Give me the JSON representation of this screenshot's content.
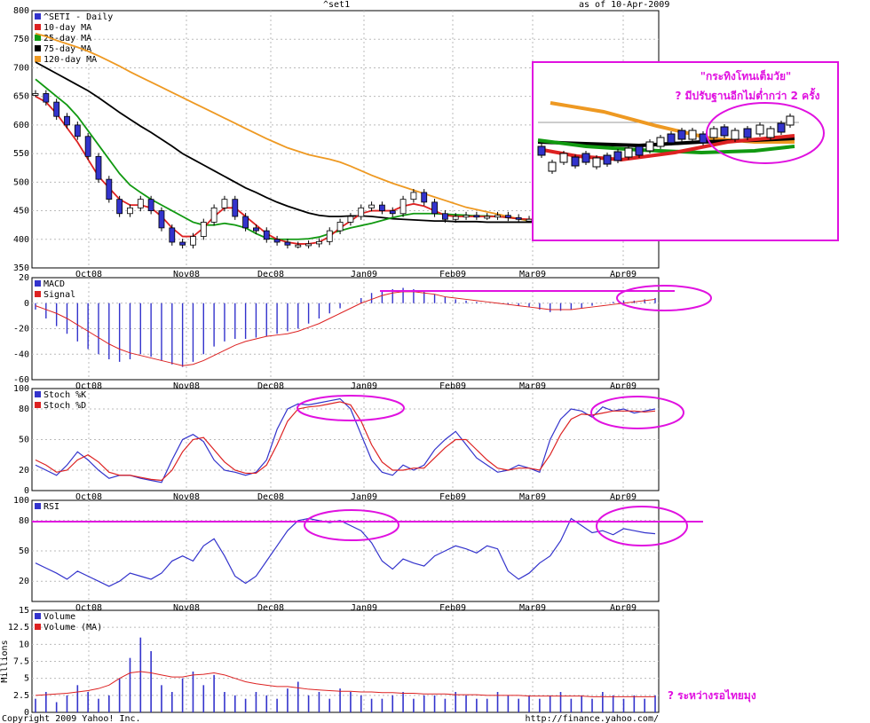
{
  "header": {
    "symbol": "^set1",
    "as_of": "as of 10-Apr-2009"
  },
  "footer": {
    "copyright": "Copyright 2009 Yahoo! Inc.",
    "source": "http://finance.yahoo.com/"
  },
  "annotations": {
    "inset_title": "\"กระทิงโทนเต็มวัย\"",
    "inset_note": "? มีปรับฐานอีกไม่ต่ำกว่า 2 ครั้ง",
    "volume_note": "? ระหว่างรอไทยมุง"
  },
  "colors": {
    "price": "#3333cc",
    "ma10": "#dd2222",
    "ma25": "#119911",
    "ma75": "#000000",
    "ma120": "#ee9922",
    "highlight": "#e011e0",
    "grid": "#bbbbbb"
  },
  "chart_data": [
    {
      "type": "line",
      "panel": "price",
      "legend": [
        "^SETI - Daily",
        "10-day MA",
        "25-day MA",
        "75-day MA",
        "120-day MA"
      ],
      "x_ticks": [
        "Oct08",
        "Nov08",
        "Dec08",
        "Jan09",
        "Feb09",
        "Mar09",
        "Apr09"
      ],
      "ylim": [
        350,
        800
      ],
      "y_ticks": [
        350,
        400,
        450,
        500,
        550,
        600,
        650,
        700,
        750,
        800
      ],
      "series": [
        {
          "name": "^SETI - Daily",
          "values": [
            655,
            640,
            615,
            600,
            580,
            545,
            505,
            470,
            445,
            455,
            470,
            450,
            420,
            395,
            390,
            405,
            430,
            455,
            470,
            440,
            420,
            415,
            400,
            395,
            390,
            390,
            392,
            396,
            415,
            430,
            440,
            455,
            460,
            450,
            445,
            470,
            482,
            465,
            445,
            435,
            440,
            442,
            440,
            440,
            442,
            438,
            435,
            435,
            436,
            430,
            430,
            422,
            418,
            420,
            425,
            430,
            434,
            438,
            440,
            450
          ]
        },
        {
          "name": "10-day MA",
          "values": [
            650,
            640,
            620,
            595,
            570,
            540,
            510,
            490,
            470,
            460,
            460,
            455,
            440,
            420,
            405,
            405,
            420,
            440,
            455,
            455,
            440,
            425,
            410,
            400,
            395,
            392,
            392,
            395,
            405,
            420,
            432,
            445,
            450,
            450,
            450,
            458,
            462,
            458,
            450,
            442,
            440,
            440,
            440,
            440,
            440,
            438,
            436,
            435,
            434,
            431,
            428,
            425,
            422,
            420,
            420,
            425,
            430,
            433,
            437,
            445
          ]
        },
        {
          "name": "25-day MA",
          "values": [
            680,
            665,
            650,
            635,
            615,
            590,
            565,
            540,
            515,
            495,
            482,
            470,
            460,
            450,
            440,
            430,
            425,
            425,
            428,
            425,
            420,
            410,
            402,
            400,
            400,
            400,
            401,
            404,
            410,
            415,
            420,
            424,
            428,
            433,
            438,
            442,
            445,
            445,
            445,
            444,
            443,
            442,
            441,
            441,
            440,
            438,
            436,
            434,
            432,
            430,
            428,
            426,
            425,
            425,
            425,
            426,
            428,
            430,
            432,
            436
          ]
        },
        {
          "name": "75-day MA",
          "values": [
            710,
            700,
            690,
            680,
            670,
            660,
            648,
            635,
            622,
            610,
            598,
            587,
            575,
            563,
            550,
            540,
            530,
            520,
            510,
            500,
            490,
            482,
            473,
            465,
            458,
            452,
            446,
            442,
            440,
            440,
            441,
            441,
            440,
            438,
            436,
            435,
            434,
            433,
            432,
            432,
            431,
            431,
            431,
            430,
            430,
            430,
            430,
            430,
            430,
            430,
            430,
            430,
            429,
            428,
            428,
            428,
            428,
            428,
            429,
            430
          ]
        },
        {
          "name": "120-day MA",
          "values": [
            760,
            755,
            748,
            742,
            736,
            729,
            721,
            712,
            703,
            693,
            684,
            675,
            666,
            657,
            648,
            639,
            630,
            621,
            612,
            603,
            594,
            585,
            576,
            568,
            560,
            554,
            548,
            544,
            540,
            535,
            528,
            520,
            512,
            505,
            498,
            492,
            486,
            480,
            474,
            468,
            462,
            456,
            452,
            448,
            444,
            440,
            436,
            432,
            428,
            425,
            423,
            421,
            420,
            420,
            420,
            421,
            422,
            423,
            424,
            425
          ]
        }
      ]
    },
    {
      "type": "line",
      "panel": "macd",
      "legend": [
        "MACD",
        "Signal"
      ],
      "x_ticks": [
        "Oct08",
        "Nov08",
        "Dec08",
        "Jan09",
        "Feb09",
        "Mar09",
        "Apr09"
      ],
      "ylim": [
        -60,
        20
      ],
      "y_ticks": [
        -60,
        -40,
        -20,
        0,
        20
      ],
      "series": [
        {
          "name": "MACD",
          "values": [
            -5,
            -12,
            -18,
            -24,
            -30,
            -36,
            -40,
            -44,
            -46,
            -44,
            -40,
            -42,
            -45,
            -48,
            -50,
            -46,
            -40,
            -34,
            -30,
            -28,
            -28,
            -27,
            -26,
            -24,
            -22,
            -20,
            -16,
            -12,
            -8,
            -4,
            0,
            4,
            8,
            10,
            11,
            12,
            11,
            9,
            7,
            5,
            3,
            2,
            1,
            0,
            0,
            -1,
            -2,
            -3,
            -5,
            -7,
            -6,
            -5,
            -4,
            -2,
            0,
            1,
            2,
            2,
            3,
            4
          ]
        },
        {
          "name": "Signal",
          "values": [
            -2,
            -5,
            -8,
            -12,
            -17,
            -22,
            -27,
            -32,
            -36,
            -39,
            -41,
            -43,
            -45,
            -47,
            -49,
            -48,
            -45,
            -41,
            -37,
            -33,
            -30,
            -28,
            -26,
            -25,
            -24,
            -22,
            -19,
            -16,
            -12,
            -8,
            -4,
            0,
            3,
            6,
            8,
            9,
            9,
            8,
            7,
            5,
            4,
            3,
            2,
            1,
            0,
            -1,
            -2,
            -3,
            -4,
            -5,
            -5,
            -5,
            -4,
            -3,
            -2,
            -1,
            0,
            1,
            2,
            3
          ]
        }
      ]
    },
    {
      "type": "line",
      "panel": "stochastic",
      "legend": [
        "Stoch %K",
        "Stoch %D"
      ],
      "x_ticks": [
        "Oct08",
        "Nov08",
        "Dec08",
        "Jan09",
        "Feb09",
        "Mar09",
        "Apr09"
      ],
      "ylim": [
        0,
        100
      ],
      "y_ticks": [
        0,
        20,
        50,
        80,
        100
      ],
      "series": [
        {
          "name": "Stoch %K",
          "values": [
            25,
            20,
            15,
            25,
            38,
            30,
            20,
            12,
            15,
            15,
            12,
            10,
            8,
            30,
            50,
            55,
            48,
            30,
            20,
            18,
            15,
            18,
            30,
            60,
            80,
            85,
            84,
            86,
            88,
            90,
            80,
            55,
            30,
            18,
            15,
            25,
            20,
            25,
            40,
            50,
            58,
            45,
            32,
            25,
            18,
            20,
            25,
            22,
            18,
            50,
            70,
            80,
            78,
            72,
            82,
            78,
            80,
            76,
            78,
            80
          ]
        },
        {
          "name": "Stoch %D",
          "values": [
            30,
            25,
            18,
            20,
            30,
            35,
            28,
            18,
            15,
            15,
            13,
            11,
            10,
            20,
            38,
            50,
            52,
            40,
            28,
            20,
            17,
            17,
            25,
            45,
            68,
            80,
            82,
            83,
            85,
            87,
            84,
            68,
            45,
            28,
            20,
            20,
            22,
            22,
            32,
            42,
            50,
            50,
            40,
            30,
            22,
            20,
            22,
            22,
            20,
            35,
            55,
            70,
            75,
            74,
            76,
            78,
            78,
            78,
            77,
            78
          ]
        }
      ]
    },
    {
      "type": "line",
      "panel": "rsi",
      "legend": [
        "RSI"
      ],
      "x_ticks": [
        "Oct08",
        "Nov08",
        "Dec08",
        "Jan09",
        "Feb09",
        "Mar09",
        "Apr09"
      ],
      "ylim": [
        0,
        100
      ],
      "y_ticks": [
        20,
        50,
        80,
        100
      ],
      "series": [
        {
          "name": "RSI",
          "values": [
            38,
            33,
            28,
            22,
            30,
            25,
            20,
            15,
            20,
            28,
            25,
            22,
            28,
            40,
            45,
            40,
            55,
            62,
            45,
            25,
            18,
            25,
            40,
            55,
            70,
            80,
            82,
            80,
            78,
            80,
            75,
            70,
            58,
            40,
            32,
            42,
            38,
            35,
            45,
            50,
            55,
            52,
            48,
            55,
            52,
            30,
            22,
            28,
            38,
            45,
            60,
            82,
            75,
            68,
            70,
            66,
            72,
            70,
            68,
            67
          ]
        }
      ]
    },
    {
      "type": "bar",
      "panel": "volume",
      "legend": [
        "Volume",
        "Volume (MA)"
      ],
      "ylabel": "Millions",
      "x_ticks": [
        "Oct08",
        "Nov08",
        "Dec08",
        "Jan09",
        "Feb09",
        "Mar09",
        "Apr09"
      ],
      "ylim": [
        0,
        15
      ],
      "y_ticks": [
        0,
        2.5,
        5,
        7.5,
        10,
        12.5,
        15
      ],
      "series": [
        {
          "name": "Volume",
          "values": [
            2,
            3,
            1.5,
            2.5,
            4,
            3,
            2,
            2.5,
            5,
            8,
            11,
            9,
            4,
            3,
            5,
            6,
            4,
            5.5,
            3,
            2.5,
            2,
            3,
            2.5,
            2,
            3.5,
            4.5,
            2.5,
            3,
            2,
            3.5,
            3,
            2.5,
            2,
            2,
            2.5,
            3,
            2,
            2.5,
            2.5,
            2,
            3,
            2.5,
            2,
            2,
            3,
            2.5,
            2,
            2.5,
            2,
            2.5,
            3,
            2,
            2.5,
            2,
            3,
            2.5,
            2,
            2.5,
            2,
            2.5
          ]
        },
        {
          "name": "Volume (MA)",
          "values": [
            2.5,
            2.6,
            2.7,
            2.8,
            3,
            3.2,
            3.5,
            4,
            5,
            5.8,
            6,
            5.8,
            5.5,
            5.2,
            5.2,
            5.5,
            5.6,
            5.8,
            5.5,
            5,
            4.5,
            4.2,
            4,
            3.8,
            3.8,
            3.6,
            3.4,
            3.3,
            3.2,
            3.1,
            3.1,
            3,
            3,
            2.9,
            2.9,
            2.8,
            2.8,
            2.7,
            2.7,
            2.7,
            2.6,
            2.6,
            2.6,
            2.5,
            2.5,
            2.5,
            2.5,
            2.4,
            2.4,
            2.4,
            2.4,
            2.4,
            2.4,
            2.3,
            2.3,
            2.3,
            2.3,
            2.3,
            2.3,
            2.3
          ]
        }
      ]
    }
  ]
}
